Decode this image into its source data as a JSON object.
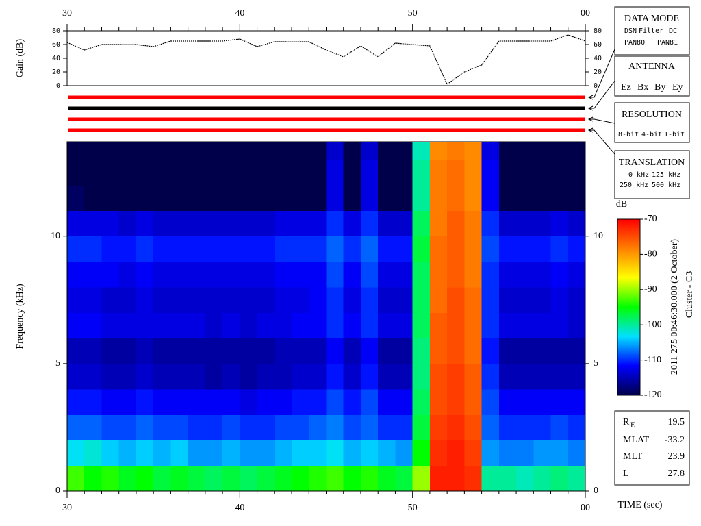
{
  "chart_data": [
    {
      "type": "line",
      "ylabel": "Gain (dB)",
      "x": [
        30,
        31,
        32,
        33,
        34,
        35,
        36,
        37,
        38,
        39,
        40,
        41,
        42,
        43,
        44,
        45,
        46,
        47,
        48,
        49,
        50,
        51,
        52,
        53,
        54,
        55,
        56,
        57,
        58,
        59,
        60
      ],
      "series": [
        {
          "color": "#000000",
          "values": [
            63,
            52,
            60,
            60,
            60,
            57,
            65,
            65,
            65,
            65,
            68,
            57,
            64,
            64,
            64,
            52,
            42,
            58,
            42,
            62,
            60,
            58,
            2,
            20,
            30,
            65,
            65,
            65,
            65,
            74,
            65
          ]
        }
      ],
      "xlim": [
        30,
        60
      ],
      "xticks": [
        30,
        40,
        50,
        {
          "value": 60,
          "label": "00"
        }
      ],
      "xminorticks": [
        31,
        32,
        33,
        34,
        35,
        36,
        37,
        38,
        39,
        41,
        42,
        43,
        44,
        45,
        46,
        47,
        48,
        49,
        51,
        52,
        53,
        54,
        55,
        56,
        57,
        58,
        59
      ],
      "ylim": [
        0,
        80
      ],
      "yticks": [
        0,
        20,
        40,
        60,
        80
      ]
    },
    {
      "type": "heatmap",
      "ylabel": "Frequency (kHz)",
      "xlabel": "TIME (sec)",
      "x_bins": [
        30,
        31,
        32,
        33,
        34,
        35,
        36,
        37,
        38,
        39,
        40,
        41,
        42,
        43,
        44,
        45,
        46,
        47,
        48,
        49,
        50,
        51,
        52,
        53,
        54,
        55,
        56,
        57,
        58,
        59,
        60
      ],
      "y_bins": [
        0,
        1,
        2,
        3,
        4,
        5,
        6,
        7,
        8,
        9,
        10,
        11,
        12,
        13,
        13.7
      ],
      "values": [
        [
          -93,
          -95,
          -94,
          -96,
          -95,
          -97,
          -96,
          -97,
          -98,
          -97,
          -98,
          -97,
          -96,
          -95,
          -94,
          -93,
          -95,
          -94,
          -96,
          -97,
          -90,
          -72,
          -72,
          -73,
          -100,
          -100,
          -101,
          -100,
          -99,
          -100
        ],
        [
          -103,
          -102,
          -104,
          -105,
          -104,
          -105,
          -104,
          -106,
          -106,
          -105,
          -106,
          -106,
          -105,
          -104,
          -104,
          -103,
          -105,
          -104,
          -105,
          -106,
          -95,
          -73,
          -72,
          -74,
          -106,
          -107,
          -107,
          -106,
          -106,
          -107
        ],
        [
          -108,
          -108,
          -109,
          -109,
          -108,
          -109,
          -109,
          -110,
          -110,
          -109,
          -110,
          -110,
          -109,
          -109,
          -108,
          -107,
          -109,
          -108,
          -110,
          -110,
          -97,
          -74,
          -73,
          -75,
          -108,
          -110,
          -110,
          -110,
          -109,
          -110
        ],
        [
          -111,
          -111,
          -112,
          -112,
          -111,
          -112,
          -112,
          -112,
          -112,
          -112,
          -113,
          -112,
          -112,
          -111,
          -111,
          -109,
          -111,
          -109,
          -112,
          -112,
          -98,
          -75,
          -74,
          -76,
          -109,
          -112,
          -112,
          -112,
          -112,
          -112
        ],
        [
          -114,
          -114,
          -115,
          -115,
          -114,
          -115,
          -115,
          -115,
          -116,
          -115,
          -116,
          -115,
          -115,
          -114,
          -114,
          -111,
          -114,
          -111,
          -115,
          -115,
          -99,
          -75,
          -74,
          -76,
          -110,
          -115,
          -115,
          -115,
          -115,
          -115
        ],
        [
          -115,
          -115,
          -116,
          -116,
          -115,
          -116,
          -116,
          -116,
          -116,
          -116,
          -116,
          -116,
          -115,
          -115,
          -115,
          -112,
          -115,
          -112,
          -116,
          -116,
          -99,
          -76,
          -75,
          -77,
          -111,
          -116,
          -116,
          -116,
          -116,
          -116
        ],
        [
          -112,
          -112,
          -113,
          -113,
          -113,
          -113,
          -113,
          -113,
          -114,
          -113,
          -114,
          -113,
          -113,
          -112,
          -112,
          -110,
          -112,
          -110,
          -113,
          -113,
          -98,
          -76,
          -75,
          -77,
          -110,
          -113,
          -113,
          -113,
          -113,
          -114
        ],
        [
          -113,
          -113,
          -114,
          -114,
          -113,
          -114,
          -114,
          -114,
          -114,
          -114,
          -114,
          -114,
          -113,
          -113,
          -112,
          -110,
          -113,
          -110,
          -114,
          -114,
          -98,
          -77,
          -75,
          -77,
          -110,
          -114,
          -114,
          -114,
          -113,
          -114
        ],
        [
          -112,
          -112,
          -112,
          -113,
          -112,
          -113,
          -113,
          -113,
          -113,
          -113,
          -113,
          -113,
          -112,
          -112,
          -112,
          -109,
          -112,
          -109,
          -113,
          -113,
          -98,
          -77,
          -76,
          -78,
          -110,
          -113,
          -113,
          -113,
          -112,
          -113
        ],
        [
          -110,
          -110,
          -111,
          -111,
          -110,
          -111,
          -111,
          -111,
          -111,
          -111,
          -111,
          -111,
          -110,
          -110,
          -110,
          -108,
          -110,
          -108,
          -111,
          -111,
          -97,
          -77,
          -76,
          -78,
          -109,
          -111,
          -111,
          -111,
          -110,
          -111
        ],
        [
          -113,
          -113,
          -113,
          -114,
          -113,
          -114,
          -114,
          -114,
          -114,
          -114,
          -114,
          -114,
          -113,
          -113,
          -113,
          -110,
          -113,
          -110,
          -114,
          -114,
          -98,
          -78,
          -76,
          -78,
          -110,
          -114,
          -114,
          -114,
          -113,
          -114
        ],
        [
          -119,
          -120,
          -120,
          -120,
          -120,
          -120,
          -120,
          -120,
          -120,
          -120,
          -120,
          -120,
          -120,
          -120,
          -120,
          -113,
          -120,
          -113,
          -120,
          -120,
          -100,
          -78,
          -77,
          -79,
          -112,
          -120,
          -120,
          -120,
          -120,
          -120
        ],
        [
          -120,
          -120,
          -120,
          -120,
          -120,
          -120,
          -120,
          -120,
          -120,
          -120,
          -120,
          -120,
          -120,
          -120,
          -120,
          -113,
          -120,
          -113,
          -120,
          -120,
          -100,
          -78,
          -77,
          -79,
          -112,
          -120,
          -120,
          -120,
          -120,
          -120
        ],
        [
          -120,
          -120,
          -120,
          -120,
          -120,
          -120,
          -120,
          -120,
          -120,
          -120,
          -120,
          -120,
          -120,
          -120,
          -120,
          -114,
          -120,
          -114,
          -120,
          -120,
          -101,
          -79,
          -78,
          -79,
          -113,
          -120,
          -120,
          -120,
          -120,
          -120
        ]
      ],
      "xlim": [
        30,
        60
      ],
      "xticks": [
        30,
        40,
        50,
        {
          "value": 60,
          "label": "00"
        }
      ],
      "xminorticks": [
        31,
        32,
        33,
        34,
        35,
        36,
        37,
        38,
        39,
        41,
        42,
        43,
        44,
        45,
        46,
        47,
        48,
        49,
        51,
        52,
        53,
        54,
        55,
        56,
        57,
        58,
        59
      ],
      "ylim": [
        0,
        13.7
      ],
      "yticks": [
        0,
        5,
        10
      ],
      "colorbar": {
        "label": "dB",
        "clim": [
          -120,
          -70
        ],
        "ticks": [
          -70,
          -80,
          -90,
          -100,
          -110,
          -120
        ],
        "colormap": [
          "#00004a",
          "#0000ff",
          "#00e0ff",
          "#00ff00",
          "#ffff00",
          "#ff8000",
          "#ff0000"
        ]
      }
    }
  ],
  "status_bar_colors": [
    "#ff0000",
    "#000000",
    "#ff0000",
    "#ff0000"
  ],
  "data_mode": {
    "title": "DATA MODE",
    "items": [
      {
        "text": "DSN",
        "color": "#ff0000"
      },
      {
        "text": "Filter",
        "color": "#00cc00"
      },
      {
        "text": "DC",
        "color": "#0000ff"
      },
      {
        "text": "PAN80",
        "color": "#000000"
      },
      {
        "text": "PAN81",
        "color": "#00dddd"
      }
    ]
  },
  "antenna": {
    "title": "ANTENNA",
    "items": [
      {
        "text": "Ez",
        "color": "#ff0000"
      },
      {
        "text": "Bx",
        "color": "#00cc00"
      },
      {
        "text": "By",
        "color": "#0000ff"
      },
      {
        "text": "Ey",
        "color": "#000000"
      }
    ]
  },
  "resolution": {
    "title": "RESOLUTION",
    "items": [
      {
        "text": "8-bit",
        "color": "#ff0000"
      },
      {
        "text": "4-bit",
        "color": "#00cc00"
      },
      {
        "text": "1-bit",
        "color": "#0000ff"
      }
    ]
  },
  "translation": {
    "title": "TRANSLATION",
    "items": [
      {
        "text": "0 kHz",
        "color": "#ff0000"
      },
      {
        "text": "125 kHz",
        "color": "#00cc00"
      },
      {
        "text": "250 kHz",
        "color": "#0000ff"
      },
      {
        "text": "500 kHz",
        "color": "#000000"
      }
    ]
  },
  "timestamp": "2011 275 00:46:30.000 (2 October)",
  "spacecraft": "Cluster - C3",
  "position": [
    {
      "label": "R",
      "subscript": "E",
      "value": 19.5
    },
    {
      "label": "MLAT",
      "value": -33.2
    },
    {
      "label": "MLT",
      "value": 23.9
    },
    {
      "label": "L",
      "value": 27.8
    }
  ]
}
